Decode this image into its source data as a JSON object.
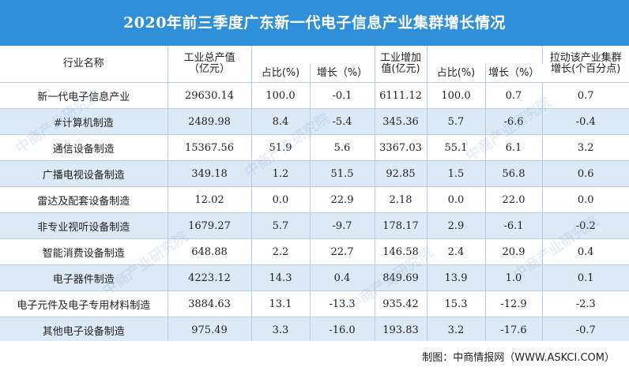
{
  "title": "2020年前三季度广东新一代电子信息产业集群增长情况",
  "header": {
    "industry": "行业名称",
    "output_value": "工业总产值",
    "output_unit": "（亿元）",
    "added_value": "工业增加",
    "added_unit": "值(亿元)",
    "share1": "占比(%)",
    "growth1": "增长（%）",
    "share2": "占比(%)",
    "growth2": "增长（%）",
    "contrib_line1": "拉动该产业集群",
    "contrib_line2": "增长(个百分点)"
  },
  "rows": [
    {
      "name": "新一代电子信息产业",
      "output": "29630.14",
      "share1": "100.0",
      "growth1": "-0.1",
      "added": "6111.12",
      "share2": "100.0",
      "growth2": "0.7",
      "contrib": "0.7"
    },
    {
      "name": "#计算机制造",
      "output": "2489.98",
      "share1": "8.4",
      "growth1": "-5.4",
      "added": "345.36",
      "share2": "5.7",
      "growth2": "-6.6",
      "contrib": "-0.4"
    },
    {
      "name": "通信设备制造",
      "output": "15367.56",
      "share1": "51.9",
      "growth1": "5.6",
      "added": "3367.03",
      "share2": "55.1",
      "growth2": "6.1",
      "contrib": "3.2"
    },
    {
      "name": "广播电视设备制造",
      "output": "349.18",
      "share1": "1.2",
      "growth1": "51.5",
      "added": "92.85",
      "share2": "1.5",
      "growth2": "56.8",
      "contrib": "0.6"
    },
    {
      "name": "雷达及配套设备制造",
      "output": "12.02",
      "share1": "0.0",
      "growth1": "22.9",
      "added": "2.18",
      "share2": "0.0",
      "growth2": "22.0",
      "contrib": "0.0"
    },
    {
      "name": "非专业视听设备制造",
      "output": "1679.27",
      "share1": "5.7",
      "growth1": "-9.7",
      "added": "178.17",
      "share2": "2.9",
      "growth2": "-6.1",
      "contrib": "-0.2"
    },
    {
      "name": "智能消费设备制造",
      "output": "648.88",
      "share1": "2.2",
      "growth1": "22.7",
      "added": "146.58",
      "share2": "2.4",
      "growth2": "20.9",
      "contrib": "0.4"
    },
    {
      "name": "电子器件制造",
      "output": "4223.12",
      "share1": "14.3",
      "growth1": "0.4",
      "added": "849.69",
      "share2": "13.9",
      "growth2": "1.0",
      "contrib": "0.1"
    },
    {
      "name": "电子元件及电子专用材料制造",
      "output": "3884.63",
      "share1": "13.1",
      "growth1": "-13.3",
      "added": "935.42",
      "share2": "15.3",
      "growth2": "-12.9",
      "contrib": "-2.3"
    },
    {
      "name": "其他电子设备制造",
      "output": "975.49",
      "share1": "3.3",
      "growth1": "-16.0",
      "added": "193.83",
      "share2": "3.2",
      "growth2": "-17.6",
      "contrib": "-0.7"
    }
  ],
  "footer": "制图：中商情报网（WWW.ASKCI.COM）",
  "watermark": "中商产业研究院",
  "colors": {
    "title_bg": "#2f8fd8",
    "stripe": "#dce9f7",
    "border": "#b9cde0"
  }
}
